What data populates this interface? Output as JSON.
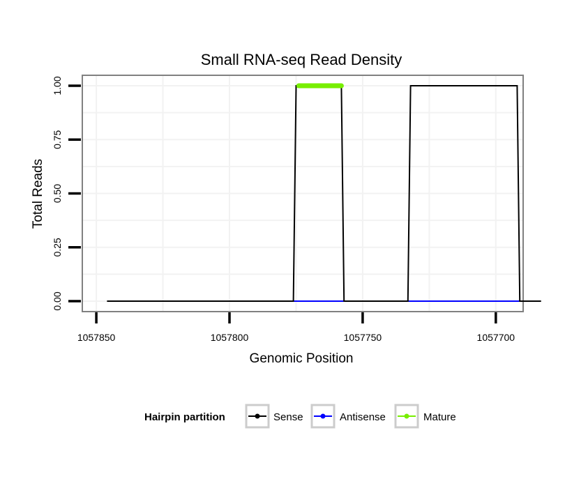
{
  "chart_data": {
    "type": "line",
    "title": "Small RNA-seq Read Density",
    "xlabel": "Genomic Position",
    "ylabel": "Total Reads",
    "x_reversed": true,
    "xlim": [
      1057855,
      1057690
    ],
    "ylim": [
      0,
      1.05
    ],
    "x_ticks": [
      1057850,
      1057800,
      1057750,
      1057700
    ],
    "x_tick_labels": [
      "1057850",
      "1057800",
      "1057750",
      "1057700"
    ],
    "y_ticks": [
      0,
      0.25,
      0.5,
      0.75,
      1.0
    ],
    "y_tick_labels": [
      "0.00",
      "0.25",
      "0.50",
      "0.75",
      "1.00"
    ],
    "grid": true,
    "legend": {
      "title": "Hairpin partition",
      "position": "bottom",
      "entries": [
        "Sense",
        "Antisense",
        "Mature"
      ]
    },
    "series": [
      {
        "name": "Sense",
        "color": "#000000",
        "x": [
          1057846,
          1057776,
          1057775,
          1057758,
          1057757,
          1057733,
          1057732,
          1057692,
          1057691,
          1057683
        ],
        "y": [
          0,
          0,
          1,
          1,
          0,
          0,
          1,
          1,
          0,
          0
        ]
      },
      {
        "name": "Antisense",
        "color": "#0000ff",
        "x": [
          1057776,
          1057757,
          1057733,
          1057691
        ],
        "y": [
          0,
          0,
          0,
          0
        ]
      },
      {
        "name": "Mature",
        "color": "#77ee00",
        "x": [
          1057774,
          1057758
        ],
        "y": [
          1,
          1
        ]
      }
    ]
  }
}
